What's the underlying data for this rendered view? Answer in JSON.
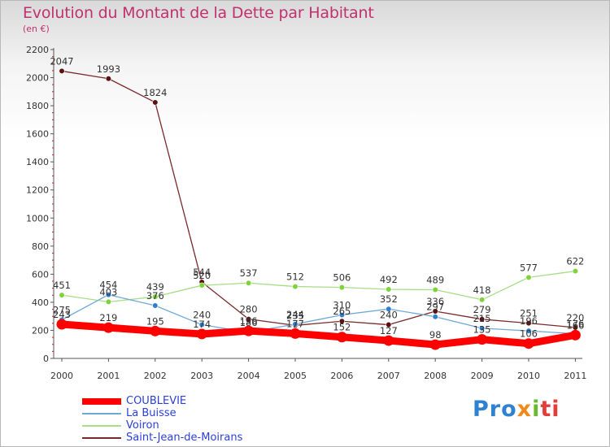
{
  "chart_data": {
    "type": "line",
    "title": "Evolution du Montant de la Dette par Habitant",
    "subtitle": "(en €)",
    "xlabel": "",
    "ylabel": "",
    "ylim": [
      0,
      2200
    ],
    "yticks": [
      0,
      200,
      400,
      600,
      800,
      1000,
      1200,
      1400,
      1600,
      1800,
      2000,
      2200
    ],
    "grid": false,
    "legend_position": "bottom-left",
    "x": [
      "2000",
      "2001",
      "2002",
      "2003",
      "2004",
      "2005",
      "2006",
      "2007",
      "2008",
      "2009",
      "2010",
      "2011"
    ],
    "series": [
      {
        "name": "COUBLEVIE",
        "color": "#ff0000",
        "marker_color": "#ff0000",
        "thick": true,
        "values": [
          243,
          219,
          195,
          174,
          196,
          177,
          152,
          127,
          98,
          135,
          106,
          166
        ]
      },
      {
        "name": "La Buisse",
        "color": "#6ea8d6",
        "marker_color": "#2f7fd0",
        "values": [
          275,
          454,
          376,
          240,
          186,
          244,
          310,
          352,
          297,
          215,
          196,
          176
        ]
      },
      {
        "name": "Voiron",
        "color": "#a6dd86",
        "marker_color": "#7ed23a",
        "values": [
          451,
          403,
          439,
          520,
          537,
          512,
          506,
          492,
          489,
          418,
          577,
          622
        ]
      },
      {
        "name": "Saint-Jean-de-Moirans",
        "color": "#7a2a2a",
        "marker_color": "#5a1111",
        "values": [
          2047,
          1993,
          1824,
          544,
          280,
          235,
          265,
          240,
          336,
          279,
          251,
          220
        ]
      }
    ]
  },
  "logo": {
    "text": [
      "Pro",
      "x",
      "i",
      "ti"
    ]
  }
}
